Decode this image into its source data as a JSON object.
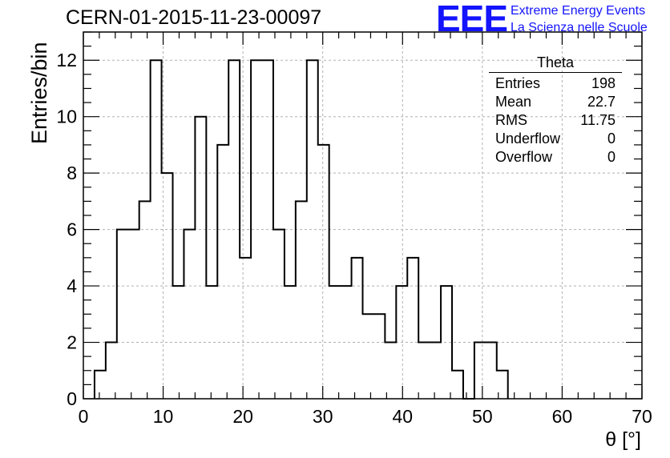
{
  "header": {
    "title": "CERN-01-2015-11-23-00097",
    "logo_text": "EEE",
    "logo_line1": "Extreme Energy Events",
    "logo_line2": "La Scienza nelle Scuole",
    "logo_color": "#1414ff"
  },
  "stats_box": {
    "title": "Theta",
    "rows": [
      {
        "label": "Entries",
        "value": "198"
      },
      {
        "label": "Mean",
        "value": "22.7"
      },
      {
        "label": "RMS",
        "value": "11.75"
      },
      {
        "label": "Underflow",
        "value": "0"
      },
      {
        "label": "Overflow",
        "value": "0"
      }
    ]
  },
  "chart_data": {
    "type": "histogram",
    "title": "CERN-01-2015-11-23-00097",
    "xlabel": "θ [°]",
    "ylabel": "Entries/bin",
    "xlim": [
      0,
      70
    ],
    "ylim": [
      0,
      13
    ],
    "bin_edges": [
      1.4,
      2.8,
      4.2,
      5.6,
      7.0,
      8.4,
      9.8,
      11.2,
      12.6,
      14.0,
      15.4,
      16.8,
      18.2,
      19.6,
      21.0,
      22.4,
      23.8,
      25.2,
      26.6,
      28.0,
      29.4,
      30.8,
      32.2,
      33.6,
      35.0,
      36.4,
      37.8,
      39.2,
      40.6,
      42.0,
      43.4,
      44.8,
      46.2,
      47.6,
      49.0,
      50.4,
      51.8,
      53.2
    ],
    "counts": [
      1,
      2,
      6,
      6,
      7,
      12,
      8,
      4,
      6,
      10,
      4,
      9,
      12,
      5,
      12,
      12,
      6,
      4,
      7,
      12,
      9,
      4,
      4,
      5,
      3,
      3,
      2,
      4,
      5,
      2,
      2,
      4,
      1,
      0,
      2,
      2,
      1
    ],
    "xticks": [
      0,
      10,
      20,
      30,
      40,
      50,
      60,
      70
    ],
    "yticks": [
      0,
      2,
      4,
      6,
      8,
      10,
      12
    ],
    "grid": true,
    "line_color": "#000000"
  }
}
